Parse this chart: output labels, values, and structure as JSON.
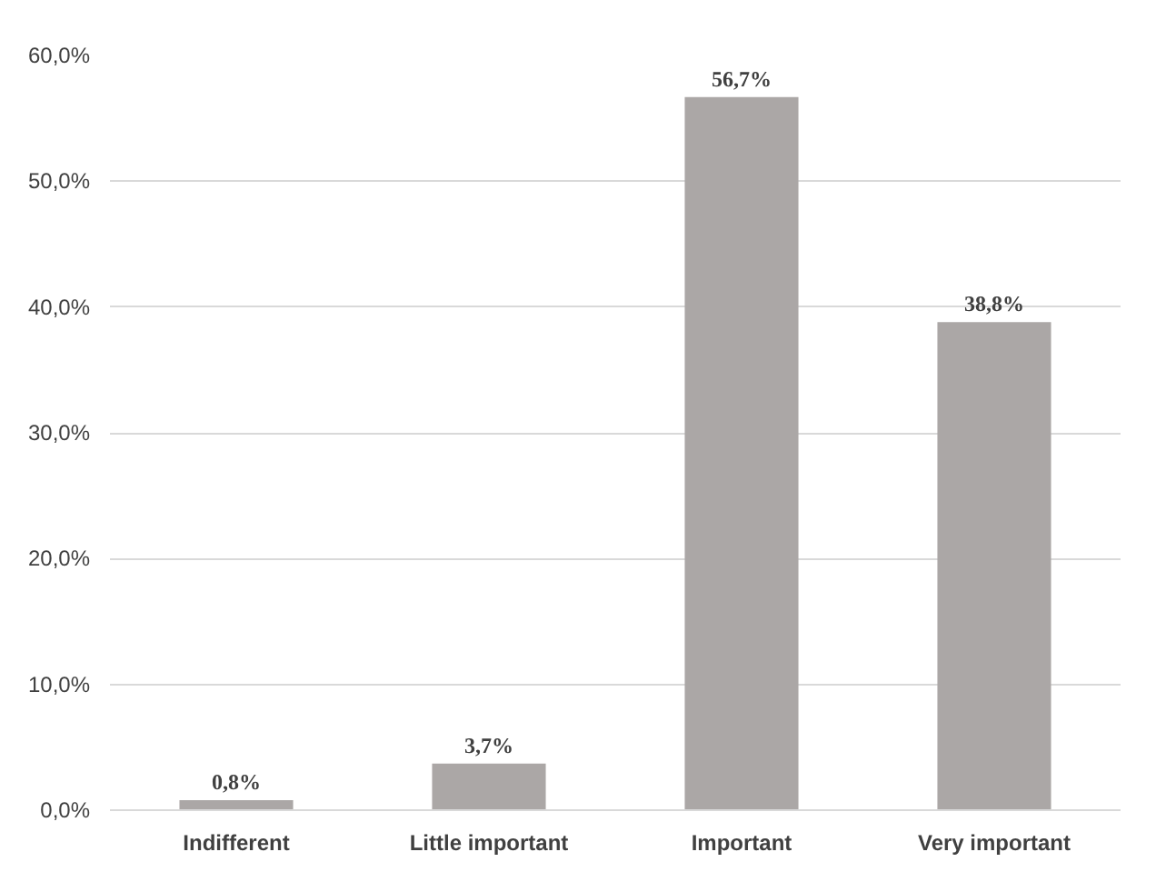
{
  "chart_data": {
    "type": "bar",
    "categories": [
      "Indifferent",
      "Little important",
      "Important",
      "Very important"
    ],
    "values": [
      0.8,
      3.7,
      56.7,
      38.8
    ],
    "value_labels": [
      "0,8%",
      "3,7%",
      "56,7%",
      "38,8%"
    ],
    "color": "#aba7a6",
    "ylim": [
      0,
      60
    ],
    "yticks": [
      {
        "value": 0,
        "label": "0,0%"
      },
      {
        "value": 10,
        "label": "10,0%"
      },
      {
        "value": 20,
        "label": "20,0%"
      },
      {
        "value": 30,
        "label": "30,0%"
      },
      {
        "value": 40,
        "label": "40,0%"
      },
      {
        "value": 50,
        "label": "50,0%"
      },
      {
        "value": 60,
        "label": "60,0%"
      }
    ],
    "grid": "y"
  }
}
